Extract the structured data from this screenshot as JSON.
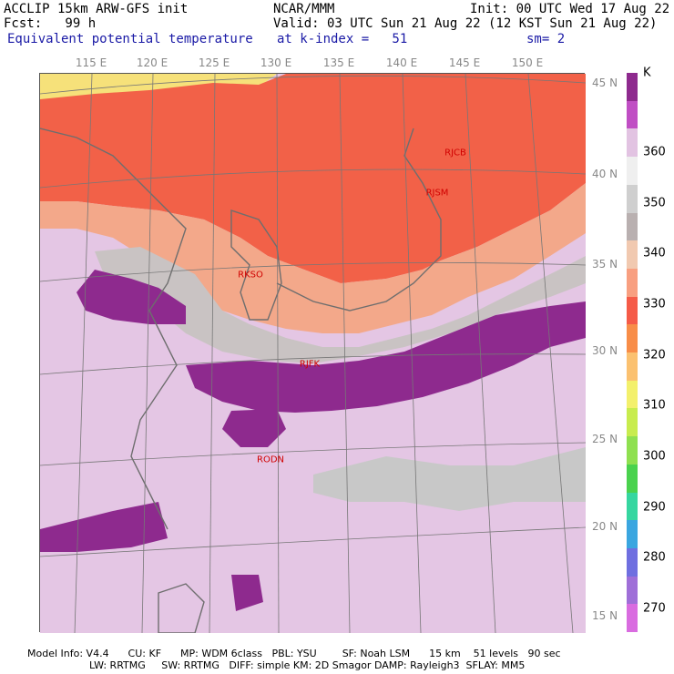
{
  "header": {
    "line1_left": "ACCLIP 15km ARW-GFS init",
    "line1_mid": "NCAR/MMM",
    "line1_right": "Init: 00 UTC Wed 17 Aug 22",
    "line2_left": "Fcst:   99 h",
    "line2_right": "Valid: 03 UTC Sun 21 Aug 22 (12 KST Sun 21 Aug 22)",
    "line3_left": "Equivalent potential temperature",
    "line3_mid": "at k-index =   51",
    "line3_right": "sm= 2"
  },
  "longitudes": [
    "115 E",
    "120 E",
    "125 E",
    "130 E",
    "135 E",
    "140 E",
    "145 E",
    "150 E"
  ],
  "latitudes": [
    "45 N",
    "40 N",
    "35 N",
    "30 N",
    "25 N",
    "20 N",
    "15 N"
  ],
  "stations": [
    "RJCB",
    "RJSM",
    "RKSO",
    "RJFK",
    "RODN"
  ],
  "colorbar": {
    "unit": "K",
    "labels": [
      "360",
      "350",
      "340",
      "330",
      "320",
      "310",
      "300",
      "290",
      "280",
      "270"
    ],
    "colors": [
      "#8e2a8e",
      "#c04ec4",
      "#e2c3e2",
      "#efefef",
      "#cfcfcf",
      "#b9b0b0",
      "#f1c9b0",
      "#f89f80",
      "#f55b48",
      "#f88d48",
      "#fbc170",
      "#f3f06c",
      "#c8ec4e",
      "#8fe050",
      "#4ad24e",
      "#36d6a0",
      "#3aa6e0",
      "#6f6fe0",
      "#9f6fd8",
      "#d96ce0"
    ]
  },
  "footer": {
    "line1": "Model Info: V4.4      CU: KF      MP: WDM 6class   PBL: YSU        SF: Noah LSM      15 km    51 levels   90 sec",
    "line2": "LW: RRTMG     SW: RRTMG   DIFF: simple KM: 2D Smagor DAMP: Rayleigh3  SFLAY: MM5"
  }
}
